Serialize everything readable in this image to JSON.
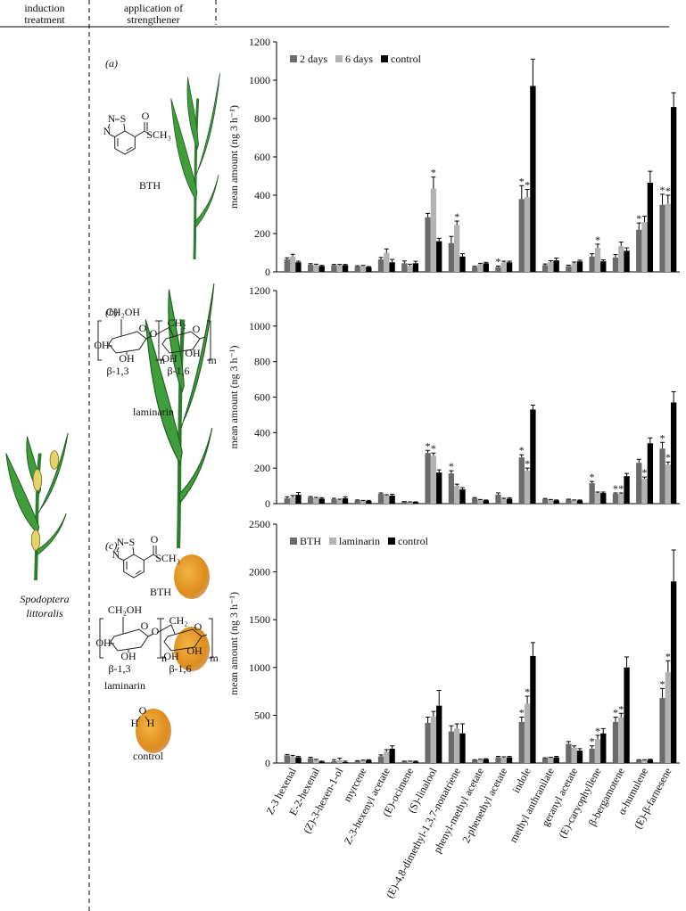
{
  "header": {
    "induction": [
      "induction",
      "treatment"
    ],
    "application": [
      "application of",
      "strengthener"
    ]
  },
  "insect": [
    "Spodoptera",
    "littoralis"
  ],
  "chart_data": [
    {
      "type": "bar",
      "label": "(a)",
      "y_label": "mean amount (ng 3 h⁻¹)",
      "ylim": [
        0,
        1200
      ],
      "yticks": [
        0,
        200,
        400,
        600,
        800,
        1000,
        1200
      ],
      "legend": "upper left",
      "strengtheners": [
        {
          "name": "BTH",
          "atoms": [
            "N",
            "S",
            "N",
            "O",
            "SCH₃"
          ]
        }
      ],
      "series": [
        {
          "name": "2 days",
          "color": "#6b6b6b",
          "values": [
            65,
            38,
            35,
            28,
            65,
            45,
            285,
            150,
            25,
            25,
            380,
            35,
            30,
            80,
            75,
            220,
            350
          ],
          "errors": [
            8,
            5,
            4,
            4,
            10,
            12,
            20,
            35,
            4,
            5,
            70,
            6,
            5,
            15,
            15,
            35,
            55
          ],
          "annotations": [
            null,
            null,
            null,
            null,
            null,
            null,
            null,
            null,
            null,
            "*",
            "*",
            null,
            null,
            null,
            null,
            "*",
            "*"
          ]
        },
        {
          "name": "6 days",
          "color": "#b3b3b3",
          "values": [
            80,
            35,
            35,
            30,
            100,
            30,
            435,
            245,
            40,
            50,
            390,
            50,
            45,
            125,
            135,
            260,
            355
          ],
          "errors": [
            12,
            5,
            4,
            4,
            20,
            10,
            60,
            20,
            5,
            6,
            40,
            8,
            6,
            20,
            20,
            30,
            45
          ],
          "annotations": [
            null,
            null,
            null,
            null,
            null,
            null,
            "*",
            "*",
            null,
            null,
            "*",
            null,
            null,
            "*",
            null,
            null,
            "*"
          ]
        },
        {
          "name": "control",
          "color": "#000000",
          "values": [
            50,
            30,
            35,
            25,
            50,
            45,
            160,
            80,
            45,
            50,
            970,
            60,
            55,
            55,
            110,
            465,
            860
          ],
          "errors": [
            6,
            4,
            4,
            3,
            15,
            10,
            15,
            15,
            5,
            6,
            140,
            12,
            6,
            8,
            15,
            60,
            75
          ],
          "annotations": [
            null,
            null,
            null,
            null,
            null,
            null,
            null,
            null,
            null,
            null,
            null,
            null,
            null,
            null,
            null,
            null,
            null
          ]
        }
      ]
    },
    {
      "type": "bar",
      "label": "(b)",
      "y_label": "mean amount (ng 3 h⁻¹)",
      "ylim": [
        0,
        1200
      ],
      "yticks": [
        0,
        200,
        400,
        600,
        800,
        1000,
        1200
      ],
      "strengtheners": [
        {
          "name": "laminarin",
          "atoms": [
            "CH₂OH",
            "O",
            "OH",
            "OH",
            "O",
            "n",
            "CH₂",
            "O",
            "OH",
            "OH",
            "m",
            "β-1,3",
            "β-1,6"
          ]
        }
      ],
      "series": [
        {
          "color": "#6b6b6b",
          "values": [
            30,
            35,
            25,
            18,
            55,
            10,
            285,
            170,
            30,
            50,
            260,
            25,
            22,
            115,
            55,
            230,
            310
          ],
          "errors": [
            8,
            5,
            5,
            3,
            5,
            2,
            15,
            15,
            4,
            10,
            15,
            4,
            3,
            10,
            5,
            20,
            35
          ],
          "annotations": [
            null,
            null,
            null,
            null,
            null,
            null,
            "*",
            "*",
            null,
            null,
            "*",
            null,
            null,
            "*",
            "*",
            null,
            "*"
          ]
        },
        {
          "color": "#b3b3b3",
          "values": [
            35,
            30,
            20,
            15,
            45,
            8,
            270,
            100,
            20,
            25,
            185,
            20,
            18,
            60,
            55,
            140,
            220
          ],
          "errors": [
            10,
            5,
            5,
            3,
            5,
            2,
            15,
            10,
            3,
            5,
            15,
            3,
            3,
            5,
            5,
            10,
            15
          ],
          "annotations": [
            null,
            null,
            null,
            null,
            null,
            null,
            "*",
            null,
            null,
            null,
            "*",
            null,
            null,
            null,
            "*",
            "*",
            "*"
          ]
        },
        {
          "color": "#000000",
          "values": [
            50,
            28,
            30,
            15,
            45,
            8,
            175,
            80,
            18,
            28,
            530,
            18,
            18,
            60,
            155,
            340,
            570
          ],
          "errors": [
            12,
            5,
            8,
            3,
            8,
            2,
            15,
            10,
            3,
            5,
            25,
            3,
            3,
            5,
            15,
            30,
            60
          ],
          "annotations": [
            null,
            null,
            null,
            null,
            null,
            null,
            null,
            null,
            null,
            null,
            null,
            null,
            null,
            null,
            null,
            null,
            null
          ]
        }
      ]
    },
    {
      "type": "bar",
      "label": "(c)",
      "y_label": "mean amount (ng 3 h⁻¹)",
      "ylim": [
        0,
        2500
      ],
      "yticks": [
        0,
        500,
        1000,
        1500,
        2000,
        2500
      ],
      "legend": "upper left",
      "strengtheners": [
        {
          "name": "BTH",
          "atoms": [
            "N",
            "S",
            "N",
            "O",
            "SCH₃"
          ]
        },
        {
          "name": "laminarin",
          "atoms": [
            "CH₂OH",
            "O",
            "OH",
            "OH",
            "O",
            "n",
            "CH₂",
            "O",
            "OH",
            "OH",
            "m",
            "β-1,3",
            "β-1,6"
          ]
        },
        {
          "name": "control",
          "atoms": [
            "H",
            "O",
            "H"
          ]
        }
      ],
      "categories": [
        "Z-3 hexenal",
        "E-2-hexenal",
        "(Z)-3-hexen-1-ol",
        "myrcene",
        "Z-3-hexenyl acetate",
        "(E)-ocimene",
        "(S)-linalool",
        "(E)-4,8-dimethyl-1,3,7-nonatriene",
        "phenyl-methyl acetate",
        "2-phenethyl acetate",
        "indole",
        "methyl anthranilate",
        "geranyl acetate",
        "(E)-caryophyllene",
        "β-bergamotene",
        "α-humulene",
        "(E)-β-farnesene"
      ],
      "series": [
        {
          "name": "BTH",
          "color": "#6b6b6b",
          "values": [
            80,
            50,
            20,
            20,
            70,
            15,
            420,
            330,
            30,
            60,
            430,
            50,
            200,
            150,
            430,
            30,
            680
          ],
          "errors": [
            10,
            10,
            15,
            5,
            15,
            5,
            60,
            60,
            5,
            10,
            50,
            5,
            25,
            30,
            50,
            5,
            100
          ],
          "annotations": [
            null,
            null,
            null,
            null,
            null,
            null,
            null,
            null,
            null,
            null,
            "*",
            null,
            null,
            "*",
            "*",
            null,
            "*"
          ]
        },
        {
          "name": "laminarin",
          "color": "#b3b3b3",
          "values": [
            70,
            30,
            30,
            25,
            120,
            15,
            490,
            360,
            35,
            55,
            620,
            55,
            160,
            250,
            480,
            30,
            950
          ],
          "errors": [
            10,
            8,
            20,
            5,
            20,
            5,
            50,
            50,
            5,
            10,
            80,
            5,
            20,
            40,
            40,
            5,
            120
          ],
          "annotations": [
            null,
            null,
            null,
            null,
            null,
            null,
            null,
            null,
            null,
            null,
            "*",
            null,
            null,
            "*",
            "*",
            null,
            "*"
          ]
        },
        {
          "name": "control",
          "color": "#000000",
          "values": [
            60,
            15,
            10,
            30,
            150,
            15,
            600,
            310,
            40,
            60,
            1120,
            60,
            130,
            310,
            1000,
            35,
            1900
          ],
          "errors": [
            10,
            5,
            10,
            5,
            30,
            5,
            160,
            100,
            5,
            10,
            140,
            10,
            20,
            50,
            110,
            5,
            330
          ],
          "annotations": [
            null,
            null,
            null,
            null,
            null,
            null,
            null,
            null,
            null,
            null,
            null,
            null,
            null,
            null,
            null,
            null,
            null
          ]
        }
      ]
    }
  ]
}
